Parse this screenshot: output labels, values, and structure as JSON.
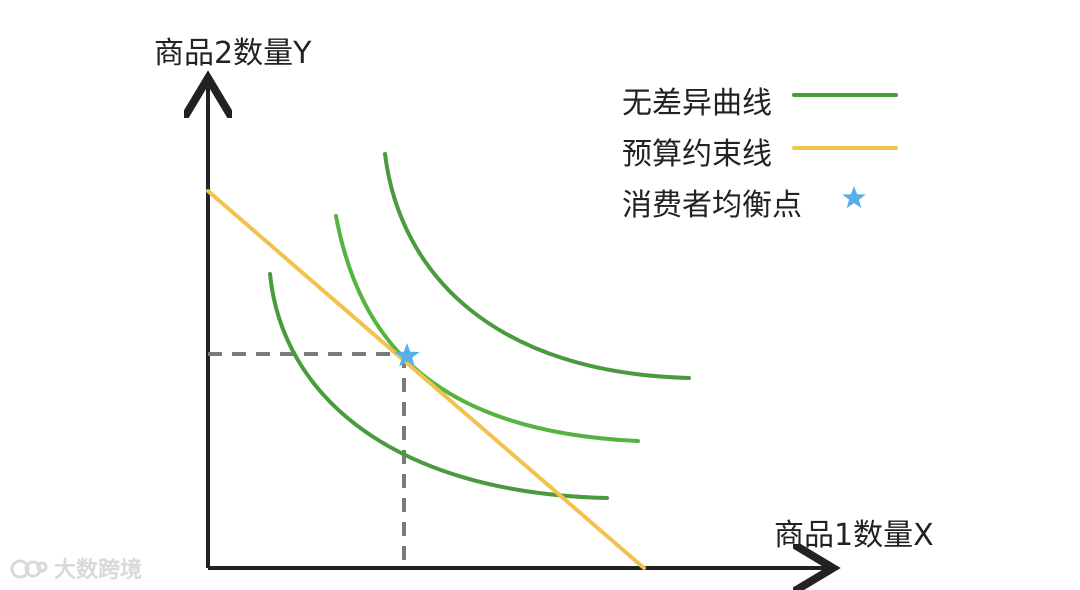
{
  "diagram": {
    "axes": {
      "x_label": "商品1数量X",
      "y_label": "商品2数量Y"
    },
    "legend": [
      {
        "label": "无差异曲线",
        "color": "#4a9a3e",
        "icon": "line"
      },
      {
        "label": "预算约束线",
        "color": "#f2c24f",
        "icon": "line"
      },
      {
        "label": "消费者均衡点",
        "color": "#58aee7",
        "icon": "star"
      }
    ],
    "watermark": {
      "text": "大数跨境"
    },
    "colors": {
      "axis": "#222222",
      "indifference_dark": "#4a9a3e",
      "indifference_light": "#56b33f",
      "budget": "#f2c24f",
      "equilibrium": "#58aee7",
      "guide": "#7a7a7a",
      "watermark": "#d9d9d9"
    }
  }
}
